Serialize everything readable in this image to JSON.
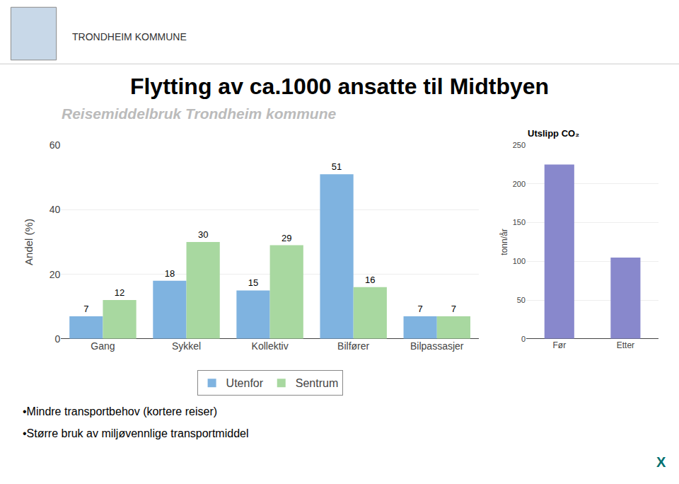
{
  "chart_data": [
    {
      "type": "bar",
      "title": "Flytting av ca.1000 ansatte til Midtbyen",
      "subtitle": "Reisemiddelbruk Trondheim kommune",
      "annotations": [
        "TRONDHEIM KOMMUNE",
        "•Mindre transportbehov (kortere reiser)",
        "•Større bruk av miljøvennlige transportmiddel",
        "X"
      ],
      "categories": [
        "Gang",
        "Sykkel",
        "Kollektiv",
        "Bilfører",
        "Bilpassasjer"
      ],
      "series": [
        {
          "name": "Utenfor",
          "color": "#7fb3e0",
          "values": [
            7,
            18,
            15,
            51,
            7
          ]
        },
        {
          "name": "Sentrum",
          "color": "#a8d8a0",
          "values": [
            12,
            30,
            29,
            16,
            7
          ]
        }
      ],
      "ylabel": "Andel (%)",
      "ylim": [
        0,
        60
      ],
      "yticks": [
        0,
        20,
        40,
        60
      ],
      "grid": true,
      "data_labels": true,
      "legend": "bottom"
    },
    {
      "type": "bar",
      "title": "Utslipp CO₂",
      "categories": [
        "Før",
        "Etter"
      ],
      "values": [
        225,
        105
      ],
      "color": "#8888cc",
      "ylabel": "tonn/år",
      "ylim": [
        0,
        250
      ],
      "yticks": [
        0,
        50,
        100,
        150,
        200,
        250
      ],
      "grid": true
    }
  ]
}
